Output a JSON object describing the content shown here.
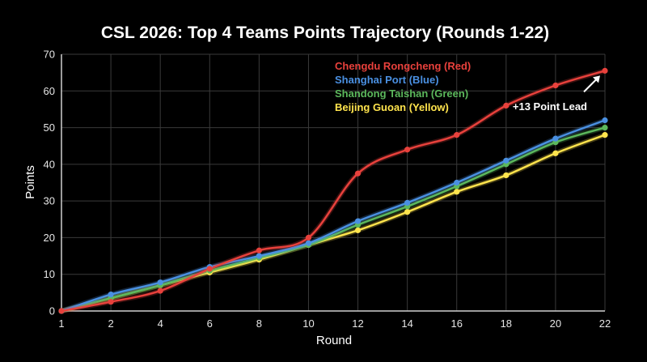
{
  "chart_data": {
    "type": "line",
    "title": "CSL 2026: Top 4 Teams Points Trajectory (Rounds 1-22)",
    "xlabel": "Round",
    "ylabel": "Points",
    "x": [
      1,
      2,
      4,
      6,
      8,
      10,
      12,
      14,
      16,
      18,
      20,
      22
    ],
    "x_ticks": [
      1,
      2,
      4,
      6,
      8,
      10,
      12,
      14,
      16,
      18,
      20,
      22
    ],
    "y_ticks": [
      0,
      10,
      20,
      30,
      40,
      50,
      60,
      70
    ],
    "ylim": [
      0,
      70
    ],
    "grid": true,
    "legend_position": "top-right",
    "series": [
      {
        "name": "Chengdu Rongcheng (Red)",
        "color": "#e8413c",
        "values": [
          0,
          2.5,
          5.5,
          11.5,
          16.5,
          20,
          37.5,
          44,
          48,
          56,
          61.5,
          65.5
        ]
      },
      {
        "name": "Shanghai Port (Blue)",
        "color": "#4a90e2",
        "values": [
          0,
          4.5,
          7.8,
          12,
          15,
          18.5,
          24.5,
          29.5,
          35,
          41,
          47,
          52
        ]
      },
      {
        "name": "Shandong Taishan (Green)",
        "color": "#5cb85c",
        "values": [
          0,
          3.5,
          7,
          11,
          14.5,
          18,
          23.5,
          28.5,
          34,
          40,
          46,
          50
        ]
      },
      {
        "name": "Beijing Guoan (Yellow)",
        "color": "#ffe44d",
        "values": [
          0,
          3.5,
          7,
          10.5,
          14,
          18,
          22,
          27,
          32.5,
          37,
          43,
          48
        ]
      }
    ],
    "annotations": [
      {
        "text": "+13 Point Lead",
        "x": 22,
        "y": 65.5
      }
    ]
  }
}
